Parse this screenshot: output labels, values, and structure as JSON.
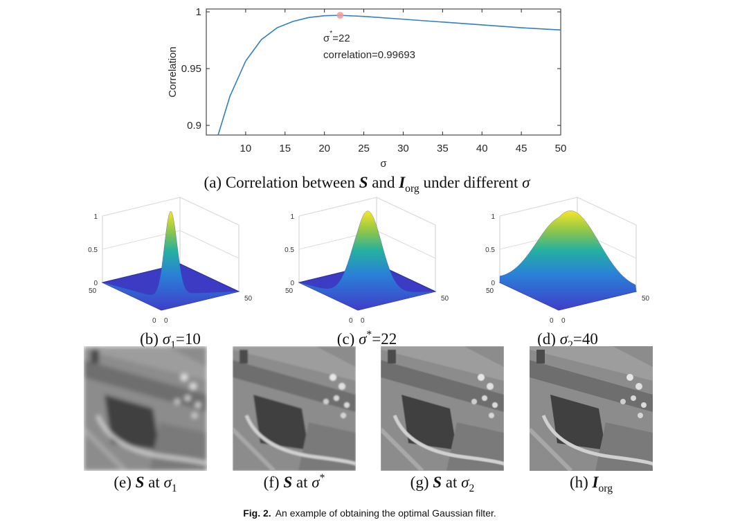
{
  "chart_data": {
    "type": "line",
    "xlabel": "σ",
    "ylabel": "Correlation",
    "x": [
      6.5,
      8,
      10,
      12,
      14,
      16,
      18,
      20,
      22,
      25,
      30,
      35,
      40,
      45,
      50
    ],
    "series": [
      {
        "color": "#2f7fc1",
        "values": [
          0.8915,
          0.9256,
          0.9567,
          0.9756,
          0.986,
          0.9915,
          0.995,
          0.9966,
          0.99693,
          0.996,
          0.9935,
          0.991,
          0.9885,
          0.986,
          0.984
        ]
      }
    ],
    "xlim": [
      5,
      50
    ],
    "ylim": [
      0.8915,
      1.0025
    ],
    "xticks": [
      10,
      15,
      20,
      25,
      30,
      35,
      40,
      45,
      50
    ],
    "yticks": [
      0.9,
      0.95,
      1
    ],
    "optimum": {
      "x": 22,
      "y": 0.99693,
      "color": "#f29b9b",
      "label": [
        {
          "text": "σ",
          "style": "plain"
        },
        {
          "text": "*",
          "style": "sup"
        },
        {
          "text": "=22",
          "style": "plain"
        }
      ],
      "value_label": "correlation=0.99693"
    }
  },
  "caption_a": [
    {
      "text": "(a) Correlation between ",
      "style": "plain"
    },
    {
      "text": "S",
      "style": "bold-italic"
    },
    {
      "text": " and ",
      "style": "plain"
    },
    {
      "text": "I",
      "style": "bold-italic"
    },
    {
      "text": "org",
      "style": "sub"
    },
    {
      "text": " under different ",
      "style": "plain"
    },
    {
      "text": "σ",
      "style": "italic"
    }
  ],
  "surfaces": [
    {
      "zticks": [
        0,
        0.5,
        1
      ],
      "xlim": [
        0,
        50
      ],
      "ylim": [
        0,
        50
      ],
      "caption": [
        {
          "text": "(b) ",
          "style": "plain"
        },
        {
          "text": "σ",
          "style": "italic"
        },
        {
          "text": "1",
          "style": "sub"
        },
        {
          "text": "=10",
          "style": "plain"
        }
      ]
    },
    {
      "zticks": [
        0,
        0.5,
        1
      ],
      "xlim": [
        0,
        50
      ],
      "ylim": [
        0,
        50
      ],
      "caption": [
        {
          "text": "(c) ",
          "style": "plain"
        },
        {
          "text": "σ",
          "style": "italic"
        },
        {
          "text": "*",
          "style": "sup"
        },
        {
          "text": "=22",
          "style": "plain"
        }
      ]
    },
    {
      "zticks": [
        0,
        0.5,
        1
      ],
      "xlim": [
        0,
        50
      ],
      "ylim": [
        0,
        50
      ],
      "caption": [
        {
          "text": "(d) ",
          "style": "plain"
        },
        {
          "text": "σ",
          "style": "italic"
        },
        {
          "text": "2",
          "style": "sub"
        },
        {
          "text": "=40",
          "style": "plain"
        }
      ]
    }
  ],
  "images": [
    {
      "caption": [
        {
          "text": "(e) ",
          "style": "plain"
        },
        {
          "text": "S",
          "style": "bold-italic"
        },
        {
          "text": " at ",
          "style": "plain"
        },
        {
          "text": "σ",
          "style": "italic"
        },
        {
          "text": "1",
          "style": "sub"
        }
      ]
    },
    {
      "caption": [
        {
          "text": "(f) ",
          "style": "plain"
        },
        {
          "text": "S",
          "style": "bold-italic"
        },
        {
          "text": " at ",
          "style": "plain"
        },
        {
          "text": "σ",
          "style": "italic"
        },
        {
          "text": "*",
          "style": "sup"
        }
      ]
    },
    {
      "caption": [
        {
          "text": "(g) ",
          "style": "plain"
        },
        {
          "text": "S",
          "style": "bold-italic"
        },
        {
          "text": " at ",
          "style": "plain"
        },
        {
          "text": "σ",
          "style": "italic"
        },
        {
          "text": "2",
          "style": "sub"
        }
      ]
    },
    {
      "caption": [
        {
          "text": "(h) ",
          "style": "plain"
        },
        {
          "text": "I",
          "style": "bold-italic"
        },
        {
          "text": "org",
          "style": "sub"
        }
      ]
    }
  ],
  "figure_caption": {
    "label": "Fig. 2.",
    "text": "An example of obtaining the optimal Gaussian filter."
  }
}
